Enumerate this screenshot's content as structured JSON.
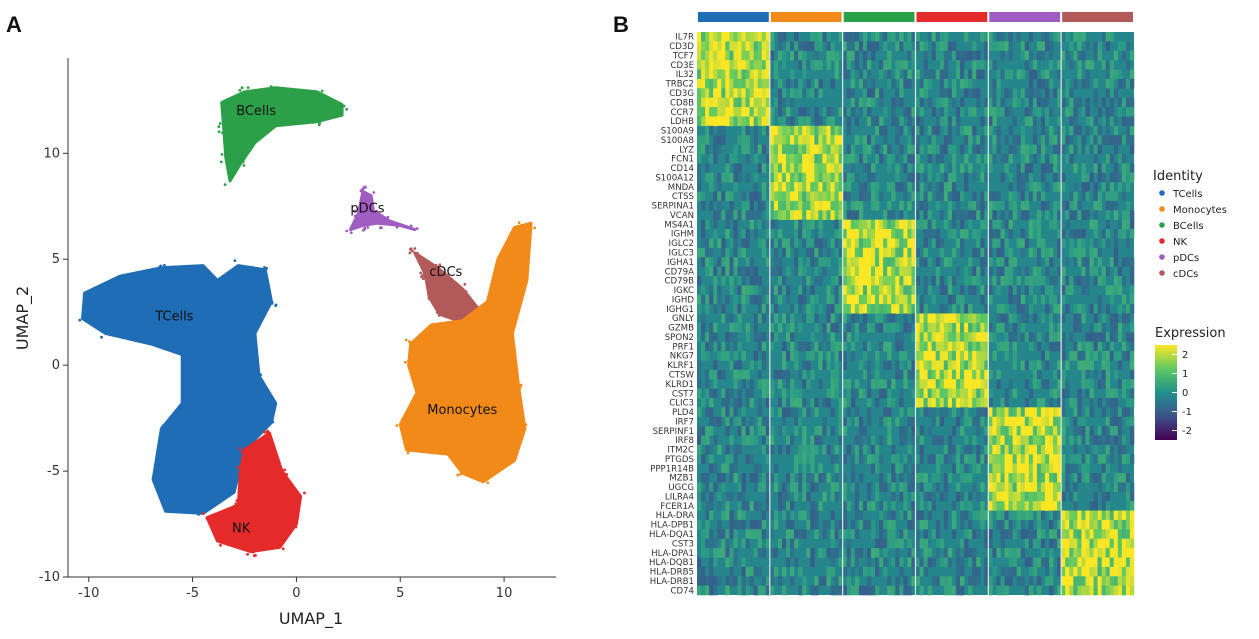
{
  "figure": {
    "panel_a_letter": "A",
    "panel_b_letter": "B"
  },
  "colors": {
    "TCells": "#1f6db5",
    "Monocytes": "#f28a1a",
    "BCells": "#2ca048",
    "NK": "#e52a2a",
    "pDCs": "#a05cc0",
    "cDCs": "#b25a5a",
    "low": "#440154",
    "mid": "#21918c",
    "high": "#fde725"
  },
  "chart_data": [
    {
      "type": "scatter",
      "title": "",
      "xlabel": "UMAP_1",
      "ylabel": "UMAP_2",
      "xlim": [
        -11,
        12.5
      ],
      "ylim": [
        -10,
        14.5
      ],
      "xticks": [
        "-10",
        "-5",
        "0",
        "5",
        "10"
      ],
      "xtick_values": [
        -10,
        -5,
        0,
        5,
        10
      ],
      "yticks": [
        "-10",
        "-5",
        "0",
        "5",
        "10"
      ],
      "ytick_values": [
        -10,
        -5,
        0,
        5,
        10
      ],
      "clusters": [
        {
          "name": "BCells",
          "label": "BCells",
          "label_at": [
            -2.9,
            11.8
          ],
          "outline": [
            [
              -3.6,
              12.4
            ],
            [
              -2.5,
              12.9
            ],
            [
              -1.0,
              13.1
            ],
            [
              1.0,
              12.9
            ],
            [
              2.2,
              12.3
            ],
            [
              2.2,
              11.8
            ],
            [
              1.0,
              11.5
            ],
            [
              -1.0,
              11.3
            ],
            [
              -2.0,
              10.5
            ],
            [
              -2.7,
              9.5
            ],
            [
              -3.2,
              8.7
            ],
            [
              -3.4,
              9.8
            ],
            [
              -3.5,
              11.2
            ]
          ]
        },
        {
          "name": "pDCs",
          "label": "pDCs",
          "label_at": [
            2.6,
            7.2
          ],
          "outline": [
            [
              3.2,
              8.2
            ],
            [
              3.6,
              8.0
            ],
            [
              3.7,
              7.3
            ],
            [
              4.5,
              6.8
            ],
            [
              5.7,
              6.4
            ],
            [
              5.0,
              6.6
            ],
            [
              3.9,
              6.7
            ],
            [
              3.2,
              6.6
            ],
            [
              2.6,
              6.4
            ],
            [
              3.0,
              7.2
            ]
          ]
        },
        {
          "name": "cDCs",
          "label": "cDCs",
          "label_at": [
            6.4,
            4.2
          ],
          "outline": [
            [
              5.7,
              5.3
            ],
            [
              6.8,
              4.6
            ],
            [
              8.0,
              3.6
            ],
            [
              8.9,
              2.5
            ],
            [
              8.7,
              2.0
            ],
            [
              7.8,
              2.1
            ],
            [
              6.9,
              2.4
            ],
            [
              6.4,
              3.2
            ],
            [
              6.2,
              4.3
            ]
          ]
        },
        {
          "name": "Monocytes",
          "label": "Monocytes",
          "label_at": [
            6.3,
            -2.3
          ],
          "outline": [
            [
              5.5,
              1.0
            ],
            [
              6.5,
              1.9
            ],
            [
              8.0,
              2.1
            ],
            [
              9.2,
              3.0
            ],
            [
              9.7,
              5.0
            ],
            [
              10.5,
              6.5
            ],
            [
              11.3,
              6.7
            ],
            [
              11.1,
              4.0
            ],
            [
              10.4,
              1.5
            ],
            [
              10.7,
              -1.0
            ],
            [
              11.0,
              -3.0
            ],
            [
              10.5,
              -4.5
            ],
            [
              9.0,
              -5.5
            ],
            [
              8.0,
              -5.1
            ],
            [
              7.3,
              -4.2
            ],
            [
              5.3,
              -4.0
            ],
            [
              5.0,
              -2.8
            ],
            [
              5.8,
              -1.3
            ],
            [
              5.4,
              0.0
            ]
          ]
        },
        {
          "name": "TCells",
          "label": "TCells",
          "label_at": [
            -6.8,
            2.1
          ],
          "outline": [
            [
              -10.2,
              3.4
            ],
            [
              -8.5,
              4.2
            ],
            [
              -6.5,
              4.6
            ],
            [
              -4.5,
              4.7
            ],
            [
              -3.8,
              4.0
            ],
            [
              -2.8,
              4.7
            ],
            [
              -1.5,
              4.5
            ],
            [
              -1.2,
              3.0
            ],
            [
              -2.0,
              1.5
            ],
            [
              -1.8,
              -0.5
            ],
            [
              -1.0,
              -1.8
            ],
            [
              -1.2,
              -2.7
            ],
            [
              -2.5,
              -4.0
            ],
            [
              -3.0,
              -6.0
            ],
            [
              -4.5,
              -7.0
            ],
            [
              -6.3,
              -6.9
            ],
            [
              -6.9,
              -5.4
            ],
            [
              -6.5,
              -3.0
            ],
            [
              -5.5,
              -1.8
            ],
            [
              -5.5,
              0.5
            ],
            [
              -7.0,
              1.0
            ],
            [
              -9.2,
              1.5
            ],
            [
              -10.3,
              2.2
            ]
          ]
        },
        {
          "name": "NK",
          "label": "NK",
          "label_at": [
            -3.1,
            -7.9
          ],
          "outline": [
            [
              -2.5,
              -4.0
            ],
            [
              -1.3,
              -3.2
            ],
            [
              -0.7,
              -5.0
            ],
            [
              0.2,
              -6.2
            ],
            [
              0.0,
              -7.5
            ],
            [
              -0.8,
              -8.6
            ],
            [
              -2.2,
              -8.8
            ],
            [
              -3.8,
              -8.3
            ],
            [
              -4.3,
              -7.2
            ],
            [
              -2.8,
              -6.6
            ],
            [
              -2.7,
              -5.0
            ]
          ]
        }
      ]
    },
    {
      "type": "heatmap",
      "title": "",
      "colorbar_title": "Expression",
      "colorbar_range": [
        -2.5,
        2.5
      ],
      "colorbar_ticks": [
        "2",
        "1",
        "0",
        "-1",
        "-2"
      ],
      "colorbar_tick_values": [
        2,
        1,
        0,
        -1,
        -2
      ],
      "legend_title": "Identity",
      "identities": [
        "TCells",
        "Monocytes",
        "BCells",
        "NK",
        "pDCs",
        "cDCs"
      ],
      "genes": [
        "IL7R",
        "CD3D",
        "TCF7",
        "CD3E",
        "IL32",
        "TRBC2",
        "CD3G",
        "CD8B",
        "CCR7",
        "LDHB",
        "S100A9",
        "S100A8",
        "LYZ",
        "FCN1",
        "CD14",
        "S100A12",
        "MNDA",
        "CTSS",
        "SERPINA1",
        "VCAN",
        "MS4A1",
        "IGHM",
        "IGLC2",
        "IGLC3",
        "IGHA1",
        "CD79A",
        "CD79B",
        "IGKC",
        "IGHD",
        "IGHG1",
        "GNLY",
        "GZMB",
        "SPON2",
        "PRF1",
        "NKG7",
        "KLRF1",
        "CTSW",
        "KLRD1",
        "CST7",
        "CLIC3",
        "PLD4",
        "IRF7",
        "SERPINF1",
        "IRF8",
        "ITM2C",
        "PTGDS",
        "PPP1R14B",
        "MZB1",
        "UGCG",
        "LILRA4",
        "FCER1A",
        "HLA-DRA",
        "HLA-DPB1",
        "HLA-DQA1",
        "CST3",
        "HLA-DPA1",
        "HLA-DQB1",
        "HLA-DRB5",
        "HLA-DRB1",
        "CD74"
      ],
      "gene_blocks": [
        {
          "identity": "TCells",
          "gene_count": 10
        },
        {
          "identity": "Monocytes",
          "gene_count": 10
        },
        {
          "identity": "BCells",
          "gene_count": 10
        },
        {
          "identity": "NK",
          "gene_count": 10
        },
        {
          "identity": "pDCs",
          "gene_count": 11
        },
        {
          "identity": "cDCs",
          "gene_count": 9
        }
      ],
      "in_cluster_mean_expression": 1.9,
      "out_cluster_mean_expression": -0.2
    }
  ]
}
